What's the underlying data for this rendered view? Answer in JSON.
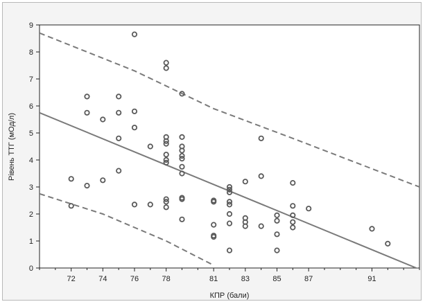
{
  "chart_data": {
    "type": "scatter",
    "xlabel": "КПР (бали)",
    "ylabel": "Рівень ТТГ (мОд/л)",
    "xlim": [
      70,
      94
    ],
    "ylim": [
      0,
      9
    ],
    "x_ticks": [
      72,
      74,
      76,
      78,
      81,
      83,
      85,
      87,
      91
    ],
    "y_ticks": [
      0,
      1,
      2,
      3,
      4,
      5,
      6,
      7,
      8,
      9
    ],
    "grid": false,
    "colors": {
      "points": "#5a5a5a",
      "regression": "#7a7a7a",
      "band": "#7a7a7a",
      "axis": "#222222",
      "plot_bg": "#ffffff"
    },
    "points": [
      [
        72,
        3.3
      ],
      [
        72,
        2.3
      ],
      [
        73,
        6.35
      ],
      [
        73,
        5.75
      ],
      [
        73,
        3.05
      ],
      [
        74,
        5.5
      ],
      [
        74,
        3.25
      ],
      [
        75,
        6.35
      ],
      [
        75,
        5.75
      ],
      [
        75,
        4.8
      ],
      [
        75,
        3.6
      ],
      [
        76,
        8.65
      ],
      [
        76,
        5.8
      ],
      [
        76,
        5.2
      ],
      [
        76,
        2.35
      ],
      [
        77,
        4.5
      ],
      [
        77,
        2.35
      ],
      [
        78,
        7.6
      ],
      [
        78,
        7.4
      ],
      [
        78,
        4.85
      ],
      [
        78,
        4.7
      ],
      [
        78,
        4.6
      ],
      [
        78,
        4.2
      ],
      [
        78,
        4.0
      ],
      [
        78,
        3.9
      ],
      [
        78,
        2.55
      ],
      [
        78,
        2.45
      ],
      [
        78,
        2.25
      ],
      [
        79,
        6.45
      ],
      [
        79,
        4.85
      ],
      [
        79,
        4.5
      ],
      [
        79,
        4.35
      ],
      [
        79,
        4.15
      ],
      [
        79,
        4.05
      ],
      [
        79,
        3.75
      ],
      [
        79,
        3.5
      ],
      [
        79,
        2.6
      ],
      [
        79,
        2.55
      ],
      [
        79,
        1.8
      ],
      [
        81,
        2.5
      ],
      [
        81,
        2.45
      ],
      [
        81,
        1.6
      ],
      [
        81,
        1.2
      ],
      [
        81,
        1.15
      ],
      [
        82,
        3.0
      ],
      [
        82,
        2.9
      ],
      [
        82,
        2.8
      ],
      [
        82,
        2.45
      ],
      [
        82,
        2.35
      ],
      [
        82,
        2.0
      ],
      [
        82,
        1.65
      ],
      [
        82,
        0.65
      ],
      [
        83,
        3.2
      ],
      [
        83,
        1.85
      ],
      [
        83,
        1.7
      ],
      [
        83,
        1.55
      ],
      [
        84,
        4.8
      ],
      [
        84,
        3.4
      ],
      [
        84,
        1.55
      ],
      [
        85,
        1.95
      ],
      [
        85,
        1.75
      ],
      [
        85,
        1.25
      ],
      [
        85,
        0.65
      ],
      [
        86,
        3.15
      ],
      [
        86,
        2.3
      ],
      [
        86,
        1.95
      ],
      [
        86,
        1.7
      ],
      [
        86,
        1.5
      ],
      [
        87,
        2.2
      ],
      [
        91,
        1.45
      ],
      [
        92,
        0.9
      ]
    ],
    "regression": [
      [
        70,
        5.75
      ],
      [
        94,
        -0.05
      ]
    ],
    "band_upper": [
      [
        70,
        8.7
      ],
      [
        76,
        7.3
      ],
      [
        81,
        5.9
      ],
      [
        86,
        4.8
      ],
      [
        94,
        3.0
      ]
    ],
    "band_lower": [
      [
        70,
        2.75
      ],
      [
        74,
        2.0
      ],
      [
        78,
        1.0
      ],
      [
        81,
        0.1
      ]
    ]
  }
}
